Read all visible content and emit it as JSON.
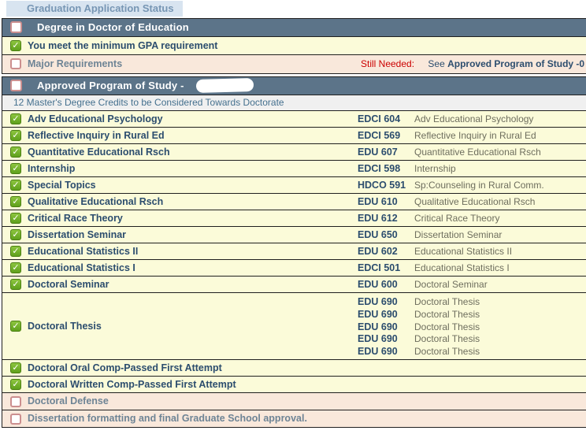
{
  "tab": {
    "label": "Graduation Application Status"
  },
  "icons": {
    "check": "✓"
  },
  "colors": {
    "slate": "#5C7489",
    "border": "#1f1f1f",
    "yellow": "#FBFBD9",
    "pink": "#F9E8DB",
    "grayrow": "#F0F0F0",
    "navy": "#2C4D6E",
    "muted": "#6E8495",
    "olive": "#6E6E5E",
    "bluegray": "#44708E",
    "tabbg": "#D8E4F0",
    "tabtext": "#7796B4",
    "red": "#CC0000",
    "greenA": "#8DC63F",
    "greenB": "#5FA01C",
    "greenBorder": "#4B7F12",
    "uncheck": "#CC8F8F"
  },
  "degree_section": {
    "title": "Degree in Doctor of Education",
    "checked": false,
    "rows": [
      {
        "label": "You meet the minimum GPA requirement",
        "checked": true
      },
      {
        "label": "Major Requirements",
        "checked": false,
        "still_needed_label": "Still Needed:",
        "see_prefix": "See ",
        "see_reference": "Approved Program of Study -0"
      }
    ]
  },
  "program_section": {
    "title": "Approved Program of Study -",
    "checked": false,
    "subtitle": "12 Master's Degree Credits to be Considered Towards Doctorate",
    "courses": [
      {
        "checked": true,
        "label": "Adv Educational Psychology",
        "code": "EDCI 604",
        "course_title": "Adv Educational Psychology"
      },
      {
        "checked": true,
        "label": "Reflective Inquiry in Rural Ed",
        "code": "EDCI 569",
        "course_title": "Reflective Inquiry in Rural Ed"
      },
      {
        "checked": true,
        "label": "Quantitative Educational Rsch",
        "code": "EDU 607",
        "course_title": "Quantitative Educational Rsch"
      },
      {
        "checked": true,
        "label": "Internship",
        "code": "EDCI 598",
        "course_title": "Internship"
      },
      {
        "checked": true,
        "label": "Special Topics",
        "code": "HDCO 591",
        "course_title": "Sp:Counseling in Rural Comm."
      },
      {
        "checked": true,
        "label": "Qualitative Educational Rsch",
        "code": "EDU 610",
        "course_title": "Qualitative Educational Rsch"
      },
      {
        "checked": true,
        "label": "Critical Race Theory",
        "code": "EDU 612",
        "course_title": "Critical Race Theory"
      },
      {
        "checked": true,
        "label": "Dissertation Seminar",
        "code": "EDU 650",
        "course_title": "Dissertation Seminar"
      },
      {
        "checked": true,
        "label": "Educational Statistics II",
        "code": "EDU 602",
        "course_title": "Educational Statistics II"
      },
      {
        "checked": true,
        "label": "Educational Statistics I",
        "code": "EDCI 501",
        "course_title": "Educational Statistics I"
      },
      {
        "checked": true,
        "label": "Doctoral Seminar",
        "code": "EDU 600",
        "course_title": "Doctoral Seminar"
      },
      {
        "checked": true,
        "label": "Doctoral Thesis",
        "entries": [
          {
            "code": "EDU 690",
            "course_title": "Doctoral Thesis"
          },
          {
            "code": "EDU 690",
            "course_title": "Doctoral Thesis"
          },
          {
            "code": "EDU 690",
            "course_title": "Doctoral Thesis"
          },
          {
            "code": "EDU 690",
            "course_title": "Doctoral Thesis"
          },
          {
            "code": "EDU 690",
            "course_title": "Doctoral Thesis"
          }
        ]
      },
      {
        "checked": true,
        "label": "Doctoral Oral Comp-Passed First Attempt"
      },
      {
        "checked": true,
        "label": "Doctoral Written Comp-Passed First Attempt"
      },
      {
        "checked": false,
        "label": "Doctoral Defense"
      },
      {
        "checked": false,
        "label": "Dissertation formatting and final Graduate School approval."
      }
    ]
  }
}
